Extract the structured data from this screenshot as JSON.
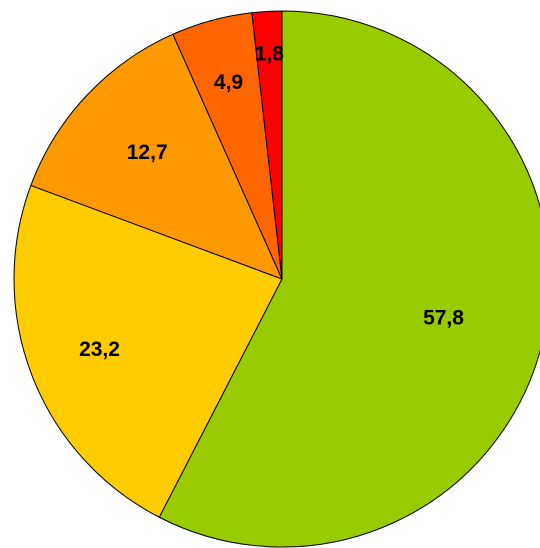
{
  "chart_data": {
    "type": "pie",
    "start_angle_deg": 0,
    "direction": "clockwise",
    "title": "",
    "legend": "none",
    "slices": [
      {
        "label": "57,8",
        "value": 57.8,
        "color": "#99cc00"
      },
      {
        "label": "23,2",
        "value": 23.2,
        "color": "#ffcc00"
      },
      {
        "label": "12,7",
        "value": 12.7,
        "color": "#ff9900"
      },
      {
        "label": "4,9",
        "value": 4.9,
        "color": "#ff6600"
      },
      {
        "label": "1,8",
        "value": 1.8,
        "color": "#ff0000"
      }
    ]
  }
}
